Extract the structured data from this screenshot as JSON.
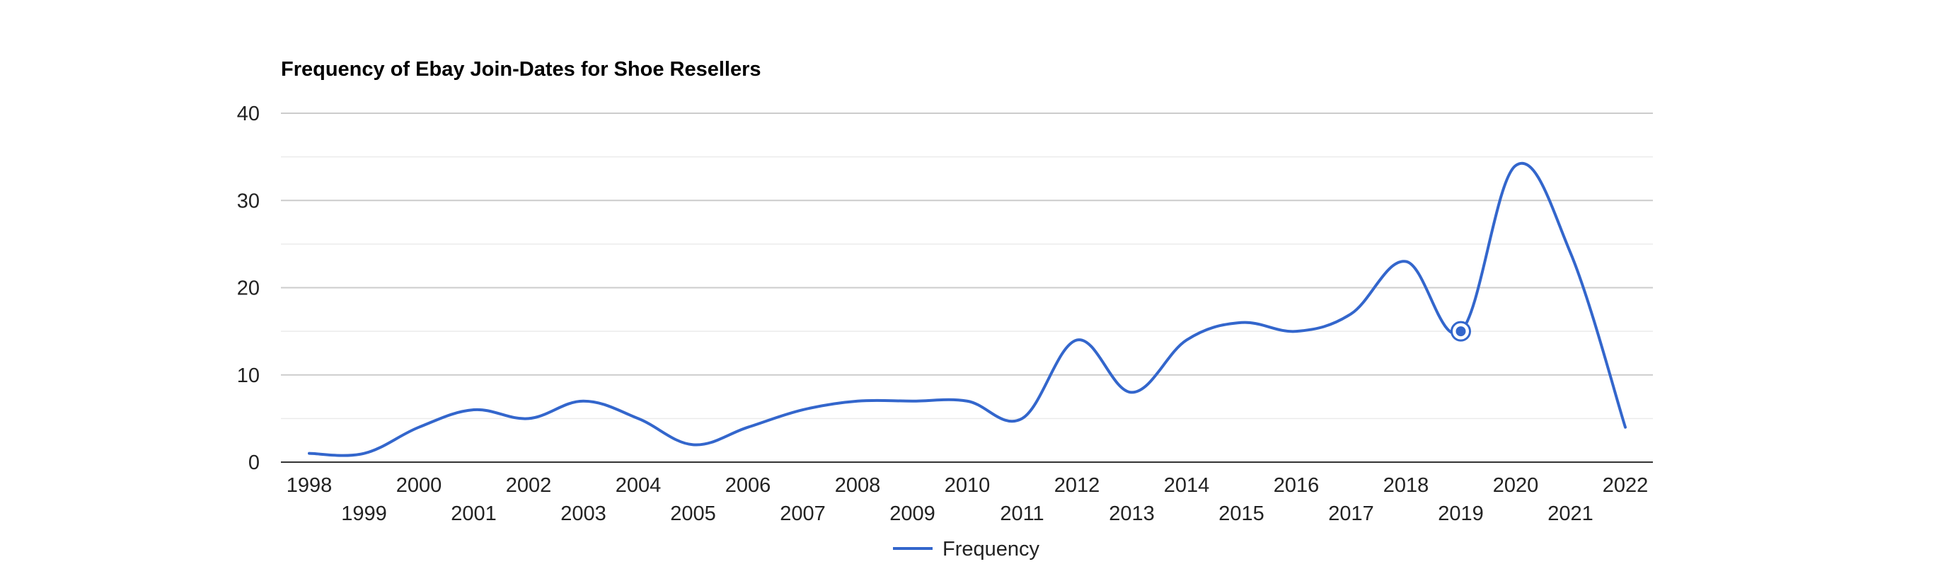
{
  "chart_data": {
    "type": "line",
    "title": "Frequency of Ebay Join-Dates for Shoe Resellers",
    "xlabel": "",
    "ylabel": "",
    "x": [
      "1998",
      "1999",
      "2000",
      "2001",
      "2002",
      "2003",
      "2004",
      "2005",
      "2006",
      "2007",
      "2008",
      "2009",
      "2010",
      "2011",
      "2012",
      "2013",
      "2014",
      "2015",
      "2016",
      "2017",
      "2018",
      "2019",
      "2020",
      "2021",
      "2022"
    ],
    "series": [
      {
        "name": "Frequency",
        "color": "#3366cc",
        "values": [
          1,
          1,
          4,
          6,
          5,
          7,
          5,
          2,
          4,
          6,
          7,
          7,
          7,
          5,
          14,
          8,
          14,
          16,
          15,
          17,
          23,
          15,
          34,
          24,
          4
        ]
      }
    ],
    "ylim": [
      0,
      40
    ],
    "yticks": [
      "0",
      "10",
      "20",
      "30",
      "40"
    ],
    "grid": true,
    "legend_position": "bottom",
    "highlighted_point": "2019"
  }
}
